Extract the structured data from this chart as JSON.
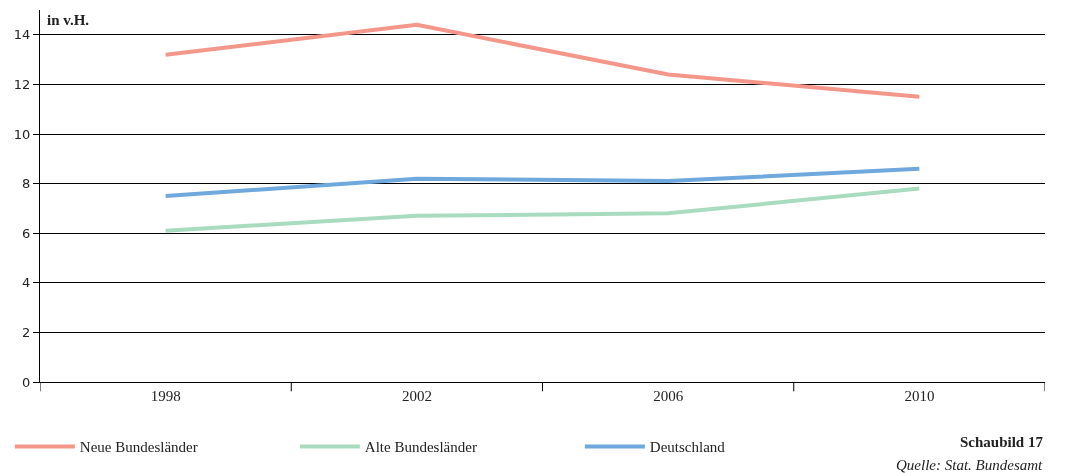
{
  "chart_data": {
    "type": "line",
    "ylabel": "in v.H.",
    "categories": [
      "1998",
      "2002",
      "2006",
      "2010"
    ],
    "series": [
      {
        "name": "Neue Bundesländer",
        "color": "#f4978a",
        "values": [
          13.2,
          14.4,
          12.4,
          11.5
        ]
      },
      {
        "name": "Alte Bundesländer",
        "color": "#a9dcbf",
        "values": [
          6.1,
          6.7,
          6.8,
          7.8
        ]
      },
      {
        "name": "Deutschland",
        "color": "#6fa8dc",
        "values": [
          7.5,
          8.2,
          8.1,
          8.6
        ]
      }
    ],
    "ylim": [
      0,
      15
    ],
    "yticks": [
      0,
      2,
      4,
      6,
      8,
      10,
      12,
      14
    ],
    "grid": "y",
    "legend": "bottom left",
    "marker": "none",
    "line_style": "solid",
    "annotations": [
      "Schaubild 17",
      "Quelle: Stat. Bundesamt"
    ]
  }
}
